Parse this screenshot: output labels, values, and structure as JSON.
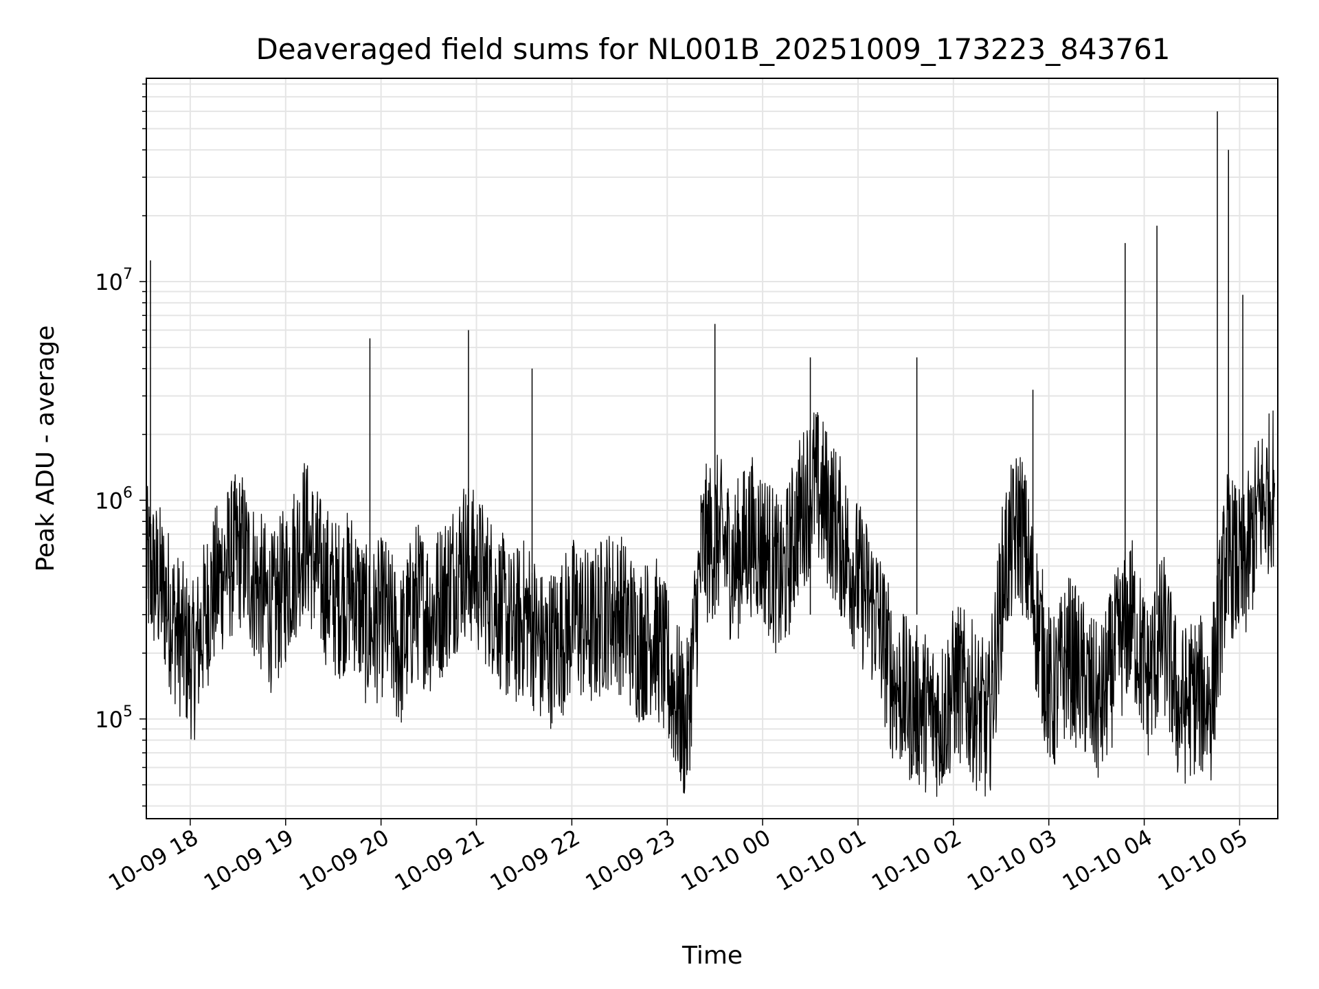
{
  "chart_data": {
    "type": "line",
    "title": "Deaveraged field sums for NL001B_20251009_173223_843761",
    "xlabel": "Time",
    "ylabel": "Peak ADU - average",
    "yscale": "log",
    "grid": true,
    "line_color": "#000000",
    "grid_color": "#e5e5e5",
    "xlim": [
      "2025-10-09T17:32:23",
      "2025-10-10T05:24:00"
    ],
    "ylim": [
      35000,
      85000000
    ],
    "x_ticks": [
      {
        "t": "2025-10-09T18:00",
        "label": "10-09 18"
      },
      {
        "t": "2025-10-09T19:00",
        "label": "10-09 19"
      },
      {
        "t": "2025-10-09T20:00",
        "label": "10-09 20"
      },
      {
        "t": "2025-10-09T21:00",
        "label": "10-09 21"
      },
      {
        "t": "2025-10-09T22:00",
        "label": "10-09 22"
      },
      {
        "t": "2025-10-09T23:00",
        "label": "10-09 23"
      },
      {
        "t": "2025-10-10T00:00",
        "label": "10-10 00"
      },
      {
        "t": "2025-10-10T01:00",
        "label": "10-10 01"
      },
      {
        "t": "2025-10-10T02:00",
        "label": "10-10 02"
      },
      {
        "t": "2025-10-10T03:00",
        "label": "10-10 03"
      },
      {
        "t": "2025-10-10T04:00",
        "label": "10-10 04"
      },
      {
        "t": "2025-10-10T05:00",
        "label": "10-10 05"
      }
    ],
    "y_ticks": [
      {
        "value": 100000,
        "base": "10",
        "exp": "5"
      },
      {
        "value": 1000000,
        "base": "10",
        "exp": "6"
      },
      {
        "value": 10000000,
        "base": "10",
        "exp": "7"
      }
    ],
    "series": [
      {
        "x": [
          "2025-10-09T17:32:23",
          "2025-10-09T17:42",
          "2025-10-09T17:52",
          "2025-10-09T18:02",
          "2025-10-09T18:12",
          "2025-10-09T18:22",
          "2025-10-09T18:32",
          "2025-10-09T18:42",
          "2025-10-09T18:52",
          "2025-10-09T19:02",
          "2025-10-09T19:12",
          "2025-10-09T19:22",
          "2025-10-09T19:32",
          "2025-10-09T19:42",
          "2025-10-09T19:52",
          "2025-10-09T20:02",
          "2025-10-09T20:12",
          "2025-10-09T20:22",
          "2025-10-09T20:32",
          "2025-10-09T20:42",
          "2025-10-09T20:52",
          "2025-10-09T21:02",
          "2025-10-09T21:12",
          "2025-10-09T21:22",
          "2025-10-09T21:32",
          "2025-10-09T21:42",
          "2025-10-09T21:52",
          "2025-10-09T22:02",
          "2025-10-09T22:12",
          "2025-10-09T22:22",
          "2025-10-09T22:32",
          "2025-10-09T22:42",
          "2025-10-09T22:52",
          "2025-10-09T23:02",
          "2025-10-09T23:12",
          "2025-10-09T23:22",
          "2025-10-09T23:32",
          "2025-10-09T23:42",
          "2025-10-09T23:52",
          "2025-10-10T00:02",
          "2025-10-10T00:12",
          "2025-10-10T00:22",
          "2025-10-10T00:32",
          "2025-10-10T00:42",
          "2025-10-10T00:52",
          "2025-10-10T01:02",
          "2025-10-10T01:12",
          "2025-10-10T01:22",
          "2025-10-10T01:32",
          "2025-10-10T01:42",
          "2025-10-10T01:52",
          "2025-10-10T02:02",
          "2025-10-10T02:12",
          "2025-10-10T02:22",
          "2025-10-10T02:32",
          "2025-10-10T02:42",
          "2025-10-10T02:52",
          "2025-10-10T03:02",
          "2025-10-10T03:12",
          "2025-10-10T03:22",
          "2025-10-10T03:32",
          "2025-10-10T03:42",
          "2025-10-10T03:52",
          "2025-10-10T04:02",
          "2025-10-10T04:12",
          "2025-10-10T04:22",
          "2025-10-10T04:32",
          "2025-10-10T04:42",
          "2025-10-10T04:52",
          "2025-10-10T05:02",
          "2025-10-10T05:12",
          "2025-10-10T05:22"
        ],
        "values": [
          500000,
          400000,
          250000,
          180000,
          350000,
          500000,
          600000,
          400000,
          300000,
          450000,
          700000,
          450000,
          350000,
          400000,
          250000,
          300000,
          200000,
          350000,
          300000,
          400000,
          550000,
          450000,
          350000,
          250000,
          300000,
          200000,
          230000,
          300000,
          250000,
          320000,
          300000,
          220000,
          250000,
          150000,
          90000,
          600000,
          700000,
          500000,
          700000,
          600000,
          400000,
          800000,
          1200000,
          900000,
          600000,
          400000,
          300000,
          150000,
          120000,
          110000,
          100000,
          150000,
          120000,
          90000,
          500000,
          800000,
          300000,
          120000,
          200000,
          150000,
          110000,
          200000,
          300000,
          150000,
          250000,
          110000,
          130000,
          120000,
          600000,
          450000,
          900000,
          1200000
        ]
      }
    ],
    "spikes": [
      {
        "t": "2025-10-09T17:35",
        "value": 12500000
      },
      {
        "t": "2025-10-09T19:53",
        "value": 5500000
      },
      {
        "t": "2025-10-09T20:55",
        "value": 6000000
      },
      {
        "t": "2025-10-09T21:35",
        "value": 4000000
      },
      {
        "t": "2025-10-09T23:30",
        "value": 6400000
      },
      {
        "t": "2025-10-10T00:30",
        "value": 4500000
      },
      {
        "t": "2025-10-10T01:37",
        "value": 4500000
      },
      {
        "t": "2025-10-10T02:50",
        "value": 3200000
      },
      {
        "t": "2025-10-10T03:48",
        "value": 15000000
      },
      {
        "t": "2025-10-10T04:08",
        "value": 18000000
      },
      {
        "t": "2025-10-10T04:46",
        "value": 60000000
      },
      {
        "t": "2025-10-10T04:53",
        "value": 40000000
      },
      {
        "t": "2025-10-10T05:02",
        "value": 8700000
      }
    ]
  }
}
